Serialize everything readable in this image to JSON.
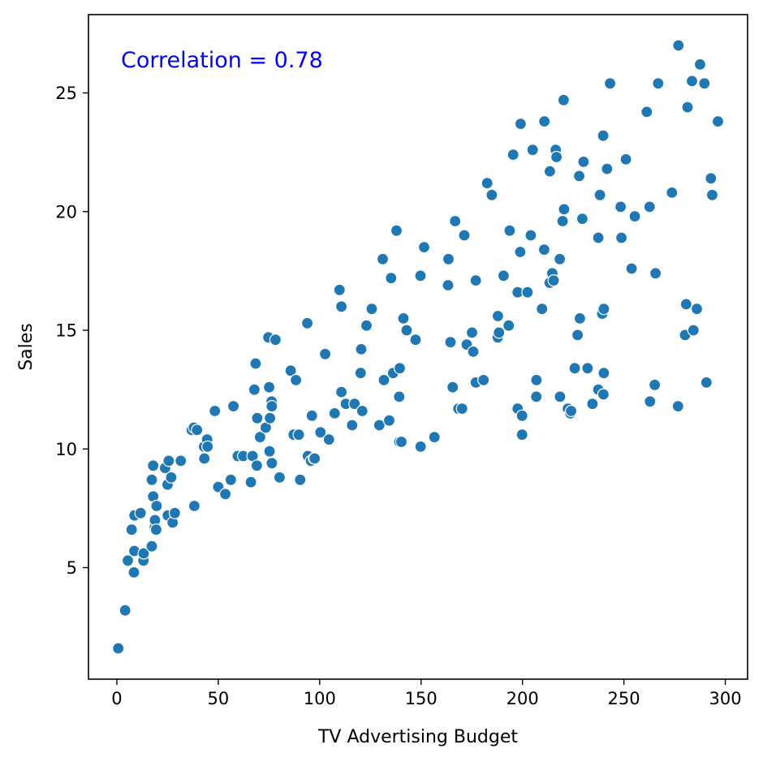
{
  "chart_data": {
    "type": "scatter",
    "title": "",
    "xlabel": "TV Advertising Budget",
    "ylabel": "Sales",
    "xlim": [
      -14,
      311
    ],
    "ylim": [
      0.3,
      28.3
    ],
    "xticks": [
      0,
      50,
      100,
      150,
      200,
      250,
      300
    ],
    "yticks": [
      5,
      10,
      15,
      20,
      25
    ],
    "grid": false,
    "annotation": "Correlation = 0.78",
    "annotation_color": "#0000ff",
    "marker_color": "#1f77b4",
    "series": [
      {
        "points": [
          [
            0.7,
            1.6
          ],
          [
            4.1,
            3.2
          ],
          [
            5.4,
            5.3
          ],
          [
            8.4,
            4.8
          ],
          [
            8.6,
            5.7
          ],
          [
            7.3,
            6.6
          ],
          [
            8.7,
            7.2
          ],
          [
            11.7,
            7.3
          ],
          [
            13.1,
            5.3
          ],
          [
            13.2,
            5.6
          ],
          [
            17.2,
            5.9
          ],
          [
            17.2,
            8.7
          ],
          [
            17.9,
            8.0
          ],
          [
            17.9,
            9.3
          ],
          [
            18.7,
            6.7
          ],
          [
            18.8,
            7.0
          ],
          [
            19.4,
            6.6
          ],
          [
            19.6,
            7.6
          ],
          [
            23.8,
            9.2
          ],
          [
            25.0,
            8.5
          ],
          [
            25.1,
            7.2
          ],
          [
            25.6,
            9.5
          ],
          [
            26.8,
            8.8
          ],
          [
            27.5,
            6.9
          ],
          [
            28.6,
            7.3
          ],
          [
            31.5,
            9.5
          ],
          [
            36.9,
            10.8
          ],
          [
            38.0,
            10.9
          ],
          [
            38.2,
            7.6
          ],
          [
            39.5,
            10.8
          ],
          [
            43.0,
            10.1
          ],
          [
            43.1,
            9.6
          ],
          [
            44.5,
            10.4
          ],
          [
            44.7,
            10.1
          ],
          [
            48.3,
            11.6
          ],
          [
            50.0,
            8.4
          ],
          [
            53.5,
            8.1
          ],
          [
            56.2,
            8.7
          ],
          [
            57.5,
            11.8
          ],
          [
            59.6,
            9.7
          ],
          [
            62.3,
            9.7
          ],
          [
            66.1,
            8.6
          ],
          [
            66.9,
            9.7
          ],
          [
            67.8,
            12.5
          ],
          [
            68.4,
            13.6
          ],
          [
            69.0,
            9.3
          ],
          [
            69.2,
            11.3
          ],
          [
            70.6,
            10.5
          ],
          [
            73.4,
            10.9
          ],
          [
            74.7,
            14.7
          ],
          [
            75.1,
            12.6
          ],
          [
            75.3,
            9.9
          ],
          [
            75.5,
            11.3
          ],
          [
            76.3,
            12.0
          ],
          [
            76.4,
            11.8
          ],
          [
            76.4,
            9.4
          ],
          [
            78.2,
            14.6
          ],
          [
            80.2,
            8.8
          ],
          [
            85.7,
            13.3
          ],
          [
            87.2,
            10.6
          ],
          [
            88.3,
            12.9
          ],
          [
            89.7,
            10.6
          ],
          [
            90.4,
            8.7
          ],
          [
            93.9,
            15.3
          ],
          [
            94.2,
            9.7
          ],
          [
            95.7,
            9.5
          ],
          [
            96.2,
            11.4
          ],
          [
            97.2,
            9.6
          ],
          [
            97.5,
            9.6
          ],
          [
            100.4,
            10.7
          ],
          [
            102.7,
            14.0
          ],
          [
            104.6,
            10.4
          ],
          [
            107.4,
            11.5
          ],
          [
            109.8,
            16.7
          ],
          [
            110.7,
            12.4
          ],
          [
            110.7,
            16.0
          ],
          [
            112.9,
            11.9
          ],
          [
            116.0,
            11.0
          ],
          [
            117.2,
            11.9
          ],
          [
            120.2,
            13.2
          ],
          [
            120.5,
            14.2
          ],
          [
            121.0,
            11.6
          ],
          [
            123.1,
            15.2
          ],
          [
            125.7,
            15.9
          ],
          [
            129.4,
            11.0
          ],
          [
            131.1,
            18.0
          ],
          [
            131.7,
            12.9
          ],
          [
            134.3,
            11.2
          ],
          [
            135.2,
            17.2
          ],
          [
            136.2,
            13.2
          ],
          [
            137.9,
            19.2
          ],
          [
            139.2,
            12.2
          ],
          [
            139.3,
            10.3
          ],
          [
            139.5,
            13.4
          ],
          [
            140.3,
            10.3
          ],
          [
            141.3,
            15.5
          ],
          [
            142.9,
            15.0
          ],
          [
            147.3,
            14.6
          ],
          [
            149.7,
            17.3
          ],
          [
            149.8,
            10.1
          ],
          [
            151.5,
            18.5
          ],
          [
            156.6,
            10.5
          ],
          [
            163.3,
            16.9
          ],
          [
            163.5,
            18.0
          ],
          [
            164.5,
            14.5
          ],
          [
            165.6,
            12.6
          ],
          [
            166.8,
            19.6
          ],
          [
            168.4,
            11.7
          ],
          [
            170.2,
            11.7
          ],
          [
            171.3,
            19.0
          ],
          [
            172.5,
            14.4
          ],
          [
            175.1,
            14.9
          ],
          [
            175.7,
            14.1
          ],
          [
            177.0,
            17.1
          ],
          [
            177.0,
            12.8
          ],
          [
            180.8,
            12.9
          ],
          [
            182.6,
            21.2
          ],
          [
            184.9,
            20.7
          ],
          [
            187.8,
            14.7
          ],
          [
            187.9,
            15.6
          ],
          [
            188.4,
            14.9
          ],
          [
            190.7,
            17.3
          ],
          [
            193.2,
            15.2
          ],
          [
            193.7,
            19.2
          ],
          [
            195.4,
            22.4
          ],
          [
            197.6,
            16.6
          ],
          [
            197.6,
            11.7
          ],
          [
            198.9,
            18.3
          ],
          [
            199.1,
            23.7
          ],
          [
            199.8,
            11.4
          ],
          [
            199.8,
            10.6
          ],
          [
            202.5,
            16.6
          ],
          [
            204.1,
            19.0
          ],
          [
            205.0,
            22.6
          ],
          [
            206.9,
            12.9
          ],
          [
            206.8,
            12.2
          ],
          [
            209.6,
            15.9
          ],
          [
            210.7,
            18.4
          ],
          [
            210.8,
            23.8
          ],
          [
            213.4,
            17.0
          ],
          [
            213.5,
            21.7
          ],
          [
            214.7,
            17.4
          ],
          [
            215.4,
            17.1
          ],
          [
            216.4,
            22.6
          ],
          [
            216.8,
            22.3
          ],
          [
            218.4,
            18.0
          ],
          [
            218.5,
            12.2
          ],
          [
            219.8,
            19.6
          ],
          [
            220.3,
            24.7
          ],
          [
            220.5,
            20.1
          ],
          [
            222.4,
            11.7
          ],
          [
            223.6,
            11.5
          ],
          [
            224.0,
            11.6
          ],
          [
            225.8,
            13.4
          ],
          [
            227.2,
            14.8
          ],
          [
            228.0,
            21.5
          ],
          [
            228.3,
            15.5
          ],
          [
            229.5,
            19.7
          ],
          [
            230.1,
            22.1
          ],
          [
            232.1,
            13.4
          ],
          [
            234.5,
            11.9
          ],
          [
            237.4,
            12.5
          ],
          [
            237.4,
            18.9
          ],
          [
            238.2,
            20.7
          ],
          [
            239.3,
            15.7
          ],
          [
            239.8,
            23.2
          ],
          [
            239.9,
            12.3
          ],
          [
            240.1,
            13.2
          ],
          [
            240.1,
            15.9
          ],
          [
            241.7,
            21.8
          ],
          [
            243.2,
            25.4
          ],
          [
            248.4,
            20.2
          ],
          [
            248.8,
            18.9
          ],
          [
            251.0,
            22.2
          ],
          [
            253.8,
            17.6
          ],
          [
            255.4,
            19.8
          ],
          [
            261.3,
            24.2
          ],
          [
            262.7,
            20.2
          ],
          [
            262.9,
            12.0
          ],
          [
            265.2,
            12.7
          ],
          [
            265.6,
            17.4
          ],
          [
            266.9,
            25.4
          ],
          [
            273.7,
            20.8
          ],
          [
            276.7,
            11.8
          ],
          [
            276.9,
            27.0
          ],
          [
            280.2,
            14.8
          ],
          [
            280.7,
            16.1
          ],
          [
            281.4,
            24.4
          ],
          [
            283.6,
            25.5
          ],
          [
            284.3,
            15.0
          ],
          [
            286.0,
            15.9
          ],
          [
            287.6,
            26.2
          ],
          [
            289.7,
            25.4
          ],
          [
            290.7,
            12.8
          ],
          [
            292.9,
            21.4
          ],
          [
            293.6,
            20.7
          ],
          [
            296.4,
            23.8
          ]
        ]
      }
    ]
  }
}
